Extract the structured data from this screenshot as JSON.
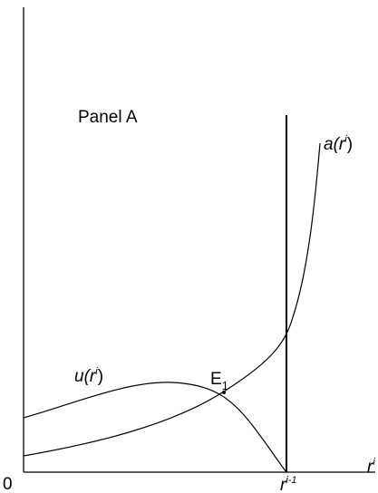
{
  "panel_label": "Panel A",
  "origin_label": "0",
  "x_axis_label": {
    "base": "r",
    "sup": "i"
  },
  "vertical_line_label": {
    "base": "r",
    "sup": "i-1"
  },
  "curve_a_label": {
    "base": "a(r",
    "sup": "i",
    "close": ")"
  },
  "curve_u_label": {
    "base": "u(r",
    "sup": "i",
    "close": ")"
  },
  "equilibrium_label": {
    "base": "E",
    "sub": "1"
  },
  "colors": {
    "ink": "#000000",
    "background": "#ffffff"
  }
}
